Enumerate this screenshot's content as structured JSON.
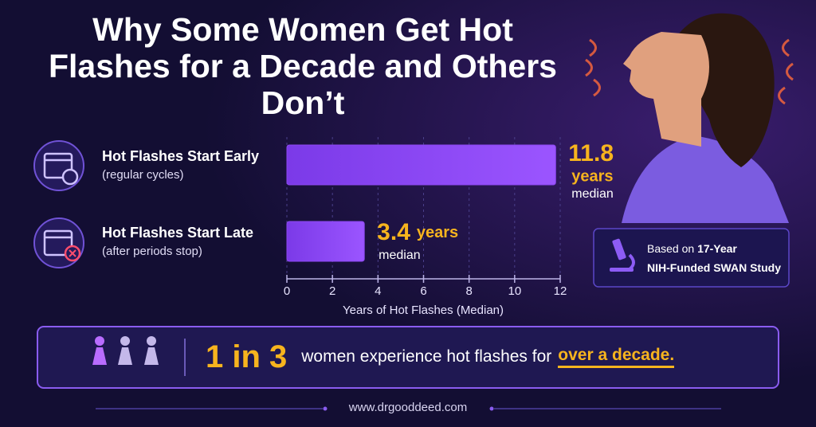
{
  "title": "Why Some Women Get Hot Flashes for a Decade and Others Don’t",
  "chart_data": {
    "type": "bar",
    "orientation": "horizontal",
    "categories": [
      "Hot Flashes Start Early",
      "Hot Flashes Start Late"
    ],
    "category_notes": [
      "(regular cycles)",
      "(after periods stop)"
    ],
    "values": [
      11.8,
      3.4
    ],
    "value_unit": "years",
    "value_note": "median",
    "color": "#8d47f2",
    "label_color": "#f7b41e",
    "xlabel": "Years of Hot Flashes (Median)",
    "xlim": [
      0,
      12
    ],
    "xticks": [
      0,
      2,
      4,
      6,
      8,
      10,
      12
    ],
    "grid": true
  },
  "source": {
    "prefix": "Based on",
    "highlight": "17-Year",
    "line2": "NIH-Funded SWAN Study"
  },
  "callout": {
    "stat": "1 in 3",
    "text": "women experience hot flashes for",
    "highlight": "over a decade."
  },
  "footer": "www.drgooddeed.com"
}
